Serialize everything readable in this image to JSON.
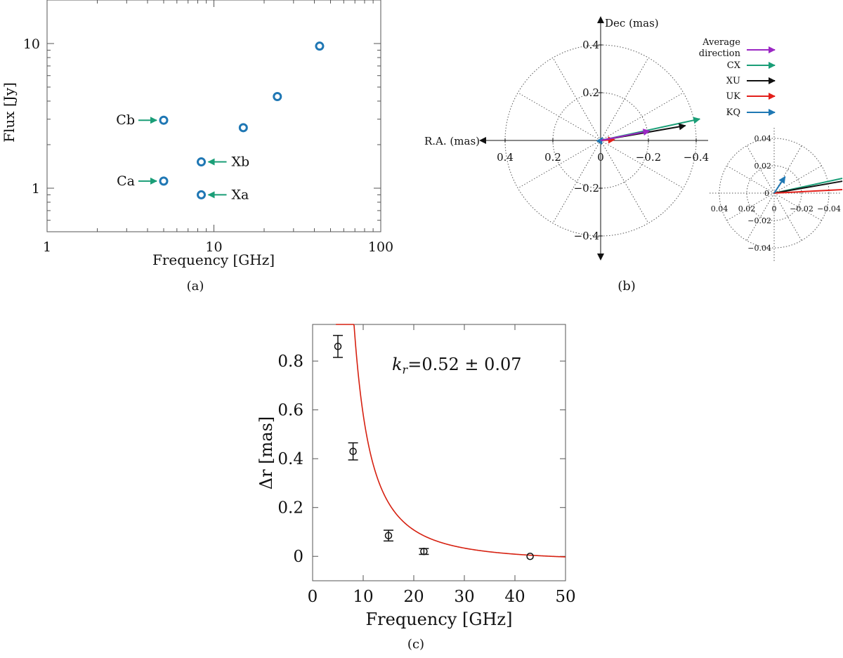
{
  "colors": {
    "marker": "#1f77b4",
    "green": "#1a9e77",
    "black": "#111111",
    "red": "#e3201b",
    "blue": "#1f78b4",
    "purple": "#9b27c4",
    "fit": "#d62010"
  },
  "chart_data": [
    {
      "id": "a",
      "type": "scatter",
      "panel_label": "(a)",
      "xlabel": "Frequency [GHz]",
      "ylabel": "Flux [Jy]",
      "xscale": "log",
      "yscale": "log",
      "xlim": [
        1,
        100
      ],
      "ylim": [
        0.5,
        20
      ],
      "xticks": [
        {
          "v": 1,
          "label": "1"
        },
        {
          "v": 10,
          "label": "10"
        },
        {
          "v": 100,
          "label": "100"
        }
      ],
      "yticks": [
        {
          "v": 1,
          "label": "1"
        },
        {
          "v": 10,
          "label": "10"
        }
      ],
      "points": [
        {
          "x": 5.0,
          "y": 2.95
        },
        {
          "x": 5.0,
          "y": 1.12
        },
        {
          "x": 8.4,
          "y": 1.52
        },
        {
          "x": 8.4,
          "y": 0.9
        },
        {
          "x": 15.0,
          "y": 2.62
        },
        {
          "x": 24.0,
          "y": 4.3
        },
        {
          "x": 43.0,
          "y": 9.6
        }
      ],
      "annotations": [
        {
          "text": "Cb",
          "x": 5.0,
          "y": 2.95,
          "side": "left"
        },
        {
          "text": "Ca",
          "x": 5.0,
          "y": 1.12,
          "side": "left"
        },
        {
          "text": "Xb",
          "x": 8.4,
          "y": 1.52,
          "side": "right"
        },
        {
          "text": "Xa",
          "x": 8.4,
          "y": 0.9,
          "side": "right"
        }
      ]
    },
    {
      "id": "b",
      "type": "polar-vector",
      "panel_label": "(b)",
      "ylabel": "Dec (mas)",
      "xlabel": "R.A. (mas)",
      "main": {
        "rmax": 0.4,
        "rings": [
          0.2,
          0.4
        ],
        "x_ticks": [
          {
            "v": 0.4,
            "label": "0.4"
          },
          {
            "v": 0.2,
            "label": "0.2"
          },
          {
            "v": 0,
            "label": "0"
          },
          {
            "v": -0.2,
            "label": "-0.2"
          },
          {
            "v": -0.4,
            "label": "-0.4"
          }
        ],
        "y_ticks": [
          {
            "v": 0.4,
            "label": "0.4"
          },
          {
            "v": 0.2,
            "label": "0.2"
          },
          {
            "v": -0.2,
            "label": "-0.2"
          },
          {
            "v": -0.4,
            "label": "-0.4"
          }
        ]
      },
      "inset": {
        "rmax": 0.04,
        "rings": [
          0.02,
          0.04
        ],
        "x_ticks": [
          {
            "v": 0.04,
            "label": "0.04"
          },
          {
            "v": 0.02,
            "label": "0.02"
          },
          {
            "v": 0,
            "label": "0"
          },
          {
            "v": -0.02,
            "label": "-0.02"
          },
          {
            "v": -0.04,
            "label": "-0.04"
          }
        ],
        "y_ticks": [
          {
            "v": 0.04,
            "label": "0.04"
          },
          {
            "v": 0.02,
            "label": "0.02"
          },
          {
            "v": 0,
            "label": "0"
          },
          {
            "v": -0.02,
            "label": "-0.02"
          },
          {
            "v": -0.04,
            "label": "-0.04"
          }
        ]
      },
      "vectors": [
        {
          "name": "CX",
          "color_key": "green",
          "dx": -0.415,
          "dy": 0.09
        },
        {
          "name": "XU",
          "color_key": "black",
          "dx": -0.355,
          "dy": 0.062
        },
        {
          "name": "UK",
          "color_key": "red",
          "dx": -0.058,
          "dy": 0.003
        },
        {
          "name": "KQ",
          "color_key": "blue",
          "dx": -0.008,
          "dy": 0.012
        },
        {
          "name": "Average direction",
          "color_key": "purple",
          "dx": -0.205,
          "dy": 0.04
        }
      ],
      "legend": [
        {
          "line1": "Average",
          "line2": "direction",
          "color_key": "purple"
        },
        {
          "line1": "CX",
          "line2": "",
          "color_key": "green"
        },
        {
          "line1": "XU",
          "line2": "",
          "color_key": "black"
        },
        {
          "line1": "UK",
          "line2": "",
          "color_key": "red"
        },
        {
          "line1": "KQ",
          "line2": "",
          "color_key": "blue"
        }
      ]
    },
    {
      "id": "c",
      "type": "scatter+fit",
      "panel_label": "(c)",
      "xlabel": "Frequency [GHz]",
      "ylabel": "Δr [mas]",
      "xlim": [
        0,
        50
      ],
      "ylim": [
        -0.1,
        0.95
      ],
      "xticks": [
        {
          "v": 0,
          "label": "0"
        },
        {
          "v": 10,
          "label": "10"
        },
        {
          "v": 20,
          "label": "20"
        },
        {
          "v": 30,
          "label": "30"
        },
        {
          "v": 40,
          "label": "40"
        },
        {
          "v": 50,
          "label": "50"
        }
      ],
      "yticks": [
        {
          "v": 0,
          "label": "0"
        },
        {
          "v": 0.2,
          "label": "0.2"
        },
        {
          "v": 0.4,
          "label": "0.4"
        },
        {
          "v": 0.6,
          "label": "0.6"
        },
        {
          "v": 0.8,
          "label": "0.8"
        }
      ],
      "points": [
        {
          "x": 5.0,
          "y": 0.86,
          "err": 0.045
        },
        {
          "x": 8.0,
          "y": 0.43,
          "err": 0.035
        },
        {
          "x": 15.0,
          "y": 0.085,
          "err": 0.022
        },
        {
          "x": 22.0,
          "y": 0.02,
          "err": 0.012
        },
        {
          "x": 43.0,
          "y": 0.0,
          "err": 0.0
        }
      ],
      "fit": {
        "A": 37.9,
        "k": 1.95,
        "x0": 1.64,
        "offset": -0.022,
        "x_start": 4.6,
        "x_end": 50
      },
      "annotation_main": "=0.52 ± 0.07",
      "annotation_k": "k",
      "annotation_sub": "r"
    }
  ]
}
